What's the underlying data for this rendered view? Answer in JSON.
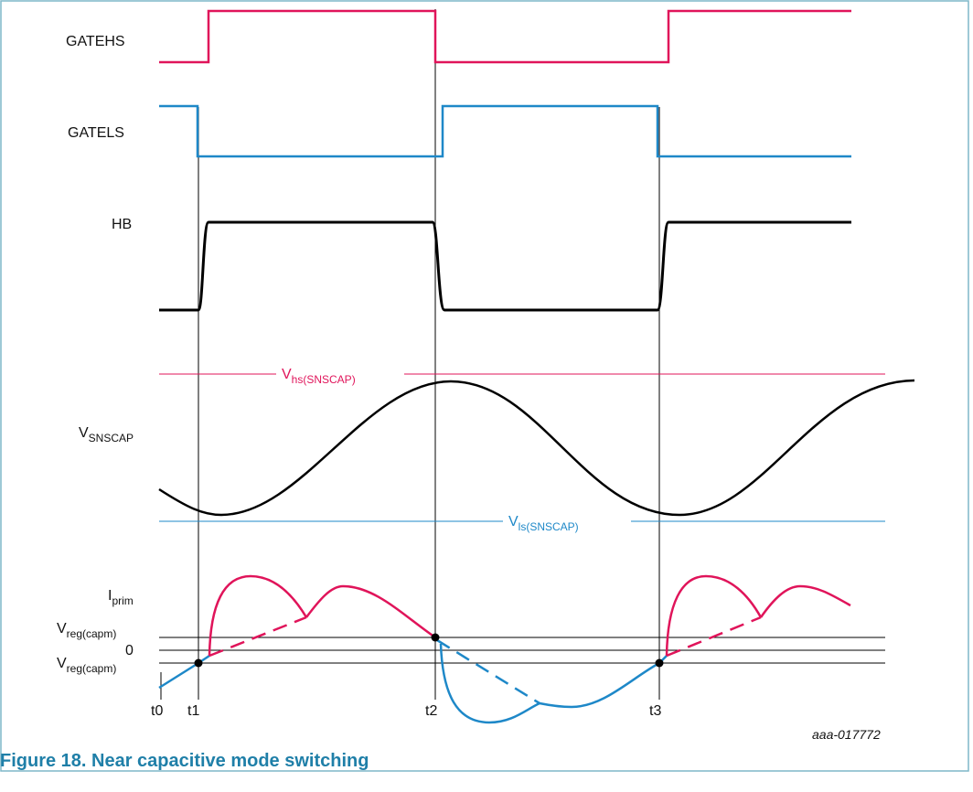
{
  "colors": {
    "border": "#7fb7c9",
    "gatehs": "#e0145a",
    "gatels": "#1e88c8",
    "hb": "#000000",
    "caption": "#1f7fa8"
  },
  "signals": {
    "gatehs": "GATEHS",
    "gatels": "GATELS",
    "hb": "HB",
    "vsnscap": {
      "main": "V",
      "sub": "SNSCAP"
    },
    "iprim": {
      "main": "I",
      "sub": "prim"
    }
  },
  "thresholds": {
    "vhs": {
      "main": "V",
      "sub": "hs(SNSCAP)"
    },
    "vls": {
      "main": "V",
      "sub": "ls(SNSCAP)"
    }
  },
  "levels": {
    "vreg_pos": {
      "main": "V",
      "sub": "reg(capm)"
    },
    "zero": "0",
    "vreg_neg": {
      "main": "V",
      "sub": "reg(capm)"
    }
  },
  "time_labels": [
    "t0",
    "t1",
    "t2",
    "t3"
  ],
  "reference": "aaa-017772",
  "caption": "Figure 18.  Near capacitive mode switching"
}
